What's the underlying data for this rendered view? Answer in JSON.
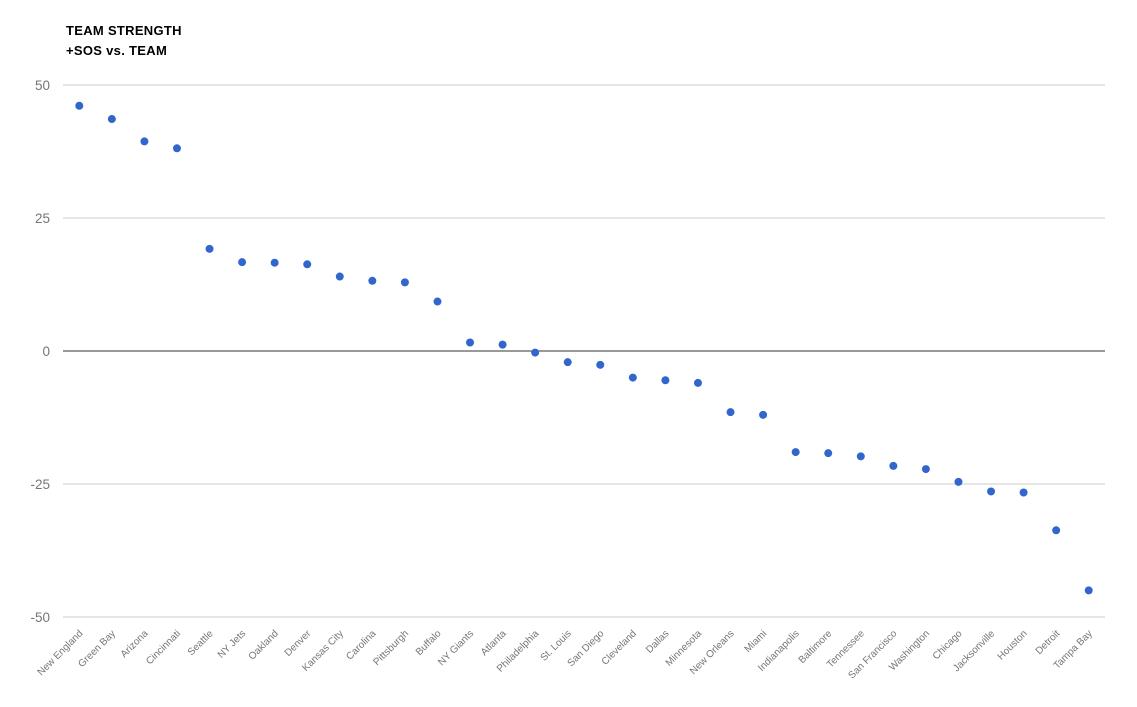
{
  "chart_data": {
    "type": "scatter",
    "title_line1": "TEAM STRENGTH",
    "title_line2": "+SOS vs. TEAM",
    "xlabel": "",
    "ylabel": "",
    "legend": "none",
    "grid": "horizontal",
    "ylim": [
      -50,
      50
    ],
    "yticks": [
      50,
      25,
      0,
      -25,
      -50
    ],
    "categories": [
      "New England",
      "Green Bay",
      "Arizona",
      "Cincinnati",
      "Seattle",
      "NY Jets",
      "Oakland",
      "Denver",
      "Kansas City",
      "Carolina",
      "Pittsburgh",
      "Buffalo",
      "NY Giants",
      "Atlanta",
      "Philadelphia",
      "St. Louis",
      "San Diego",
      "Cleveland",
      "Dallas",
      "Minnesota",
      "New Orleans",
      "Miami",
      "Indianapolis",
      "Baltimore",
      "Tennessee",
      "San Francisco",
      "Washington",
      "Chicago",
      "Jacksonville",
      "Houston",
      "Detroit",
      "Tampa Bay"
    ],
    "values": [
      46.1,
      43.6,
      39.4,
      38.1,
      19.2,
      16.7,
      16.6,
      16.3,
      14.0,
      13.2,
      12.9,
      9.3,
      1.6,
      1.2,
      -0.3,
      -2.1,
      -2.6,
      -5.0,
      -5.5,
      -6.0,
      -11.5,
      -12.0,
      -19.0,
      -19.2,
      -19.8,
      -21.6,
      -22.2,
      -24.6,
      -26.4,
      -26.6,
      -33.7,
      -45.0
    ],
    "colors": {
      "point": "#3366cc",
      "gridline": "#cccccc",
      "zero_line": "#333333",
      "axis_tick_label": "#757575",
      "category_label": "#757575",
      "title": "#000000",
      "background": "#ffffff"
    }
  }
}
